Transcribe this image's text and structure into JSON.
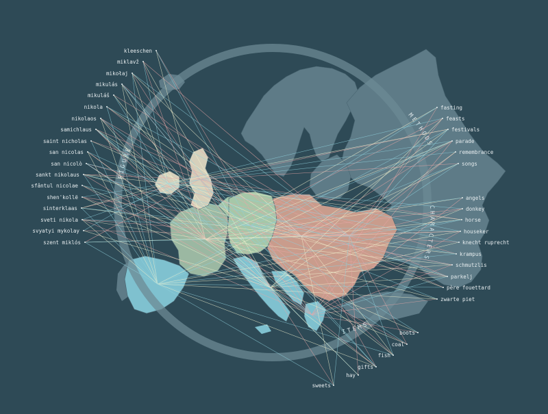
{
  "colors": {
    "background": "#2e4a56",
    "land": "#5e7b87",
    "ring": "#6c8994",
    "west": "#9bb8a2",
    "central": "#a6c7a8",
    "east": "#c99c8c",
    "south": "#7fc1cf",
    "british": "#d6d0bb",
    "line_light": "#f2f2cf",
    "line_pink": "#e8a6a6",
    "line_blue": "#8fd0dc"
  },
  "ring_labels": {
    "figure": "FIGURE",
    "methods": "METHODS",
    "characters": "CHARACTERS",
    "items": "ITEMS"
  },
  "figures": [
    "kleeschen",
    "miklavž",
    "mikołaj",
    "mikulás",
    "mikuláš",
    "nikola",
    "nikolaos",
    "samichlaus",
    "saint nicholas",
    "san nicolas",
    "san nicolò",
    "sankt nikolaus",
    "sfântul nicolae",
    "shen'kollë",
    "sinterklaas",
    "sveti nikola",
    "svyatyi mykolay",
    "szent miklós"
  ],
  "methods": [
    "fasting",
    "feasts",
    "festivals",
    "parade",
    "remembrance",
    "songs"
  ],
  "characters": [
    "angels",
    "donkey",
    "horse",
    "houseker",
    "knecht ruprecht",
    "krampus",
    "schmutzlis",
    "parkelj",
    "père fouettard",
    "zwarte piet"
  ],
  "items": [
    "boots",
    "coal",
    "fish",
    "gifts",
    "hay",
    "sweets"
  ]
}
